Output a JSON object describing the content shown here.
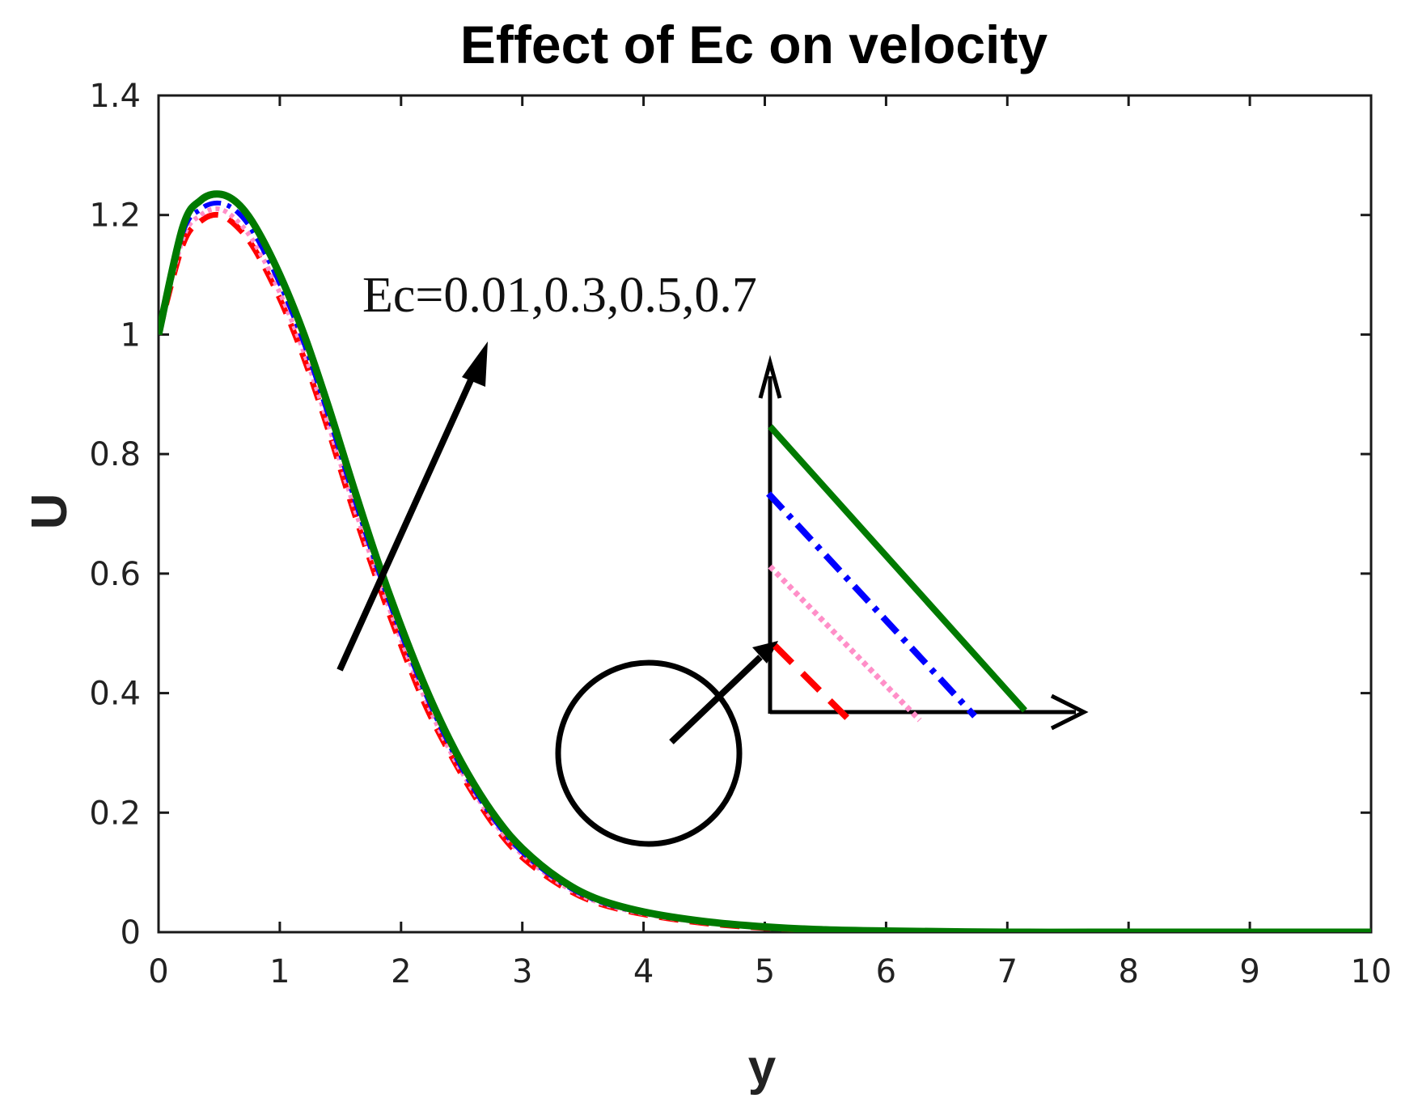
{
  "chart_data": {
    "type": "line",
    "title": "Effect of Ec on velocity",
    "xlabel": "y",
    "ylabel": "U",
    "xlim": [
      0,
      10
    ],
    "ylim": [
      0,
      1.4
    ],
    "xticks": [
      0,
      1,
      2,
      3,
      4,
      5,
      6,
      7,
      8,
      9,
      10
    ],
    "xtick_labels": [
      "0",
      "1",
      "2",
      "3",
      "4",
      "5",
      "6",
      "7",
      "8",
      "9",
      "10"
    ],
    "yticks": [
      0,
      0.2,
      0.4,
      0.6,
      0.8,
      1.0,
      1.2,
      1.4
    ],
    "ytick_labels": [
      "0",
      "0.2",
      "0.4",
      "0.6",
      "0.8",
      "1",
      "1.2",
      "1.4"
    ],
    "grid": false,
    "annotation": "Ec=0.01,0.3,0.5,0.7",
    "series": [
      {
        "name": "Ec=0.01",
        "color": "#ff0000",
        "style": "dashed",
        "x": [
          0,
          0.2,
          0.35,
          0.5,
          0.65,
          0.8,
          1.0,
          1.2,
          1.4,
          1.6,
          1.8,
          2.0,
          2.2,
          2.4,
          2.6,
          2.8,
          3.0,
          3.3,
          3.6,
          4.0,
          4.5,
          5.0,
          5.5,
          6.0,
          7.0,
          8.0,
          9.0,
          10.0
        ],
        "y": [
          1.0,
          1.15,
          1.19,
          1.2,
          1.18,
          1.14,
          1.06,
          0.96,
          0.84,
          0.71,
          0.59,
          0.48,
          0.38,
          0.3,
          0.23,
          0.17,
          0.125,
          0.08,
          0.05,
          0.03,
          0.015,
          0.007,
          0.003,
          0.001,
          0.0,
          0.0,
          0.0,
          0.0
        ]
      },
      {
        "name": "Ec=0.3",
        "color": "#ff8fc8",
        "style": "dotted",
        "x": [
          0,
          0.2,
          0.35,
          0.5,
          0.65,
          0.8,
          1.0,
          1.2,
          1.4,
          1.6,
          1.8,
          2.0,
          2.2,
          2.4,
          2.6,
          2.8,
          3.0,
          3.3,
          3.6,
          4.0,
          4.5,
          5.0,
          5.5,
          6.0,
          7.0,
          8.0,
          9.0,
          10.0
        ],
        "y": [
          1.0,
          1.16,
          1.2,
          1.21,
          1.19,
          1.15,
          1.07,
          0.97,
          0.85,
          0.72,
          0.6,
          0.49,
          0.39,
          0.305,
          0.235,
          0.175,
          0.13,
          0.083,
          0.052,
          0.031,
          0.016,
          0.008,
          0.003,
          0.001,
          0.0,
          0.0,
          0.0,
          0.0
        ]
      },
      {
        "name": "Ec=0.5",
        "color": "#0000ff",
        "style": "dashdot",
        "x": [
          0,
          0.2,
          0.35,
          0.5,
          0.65,
          0.8,
          1.0,
          1.2,
          1.4,
          1.6,
          1.8,
          2.0,
          2.2,
          2.4,
          2.6,
          2.8,
          3.0,
          3.3,
          3.6,
          4.0,
          4.5,
          5.0,
          5.5,
          6.0,
          7.0,
          8.0,
          9.0,
          10.0
        ],
        "y": [
          1.0,
          1.17,
          1.21,
          1.22,
          1.205,
          1.165,
          1.085,
          0.985,
          0.865,
          0.735,
          0.612,
          0.5,
          0.4,
          0.313,
          0.24,
          0.18,
          0.134,
          0.086,
          0.054,
          0.032,
          0.017,
          0.008,
          0.004,
          0.001,
          0.0,
          0.0,
          0.0,
          0.0
        ]
      },
      {
        "name": "Ec=0.7",
        "color": "#007a00",
        "style": "solid",
        "x": [
          0,
          0.2,
          0.35,
          0.5,
          0.65,
          0.8,
          1.0,
          1.2,
          1.4,
          1.6,
          1.8,
          2.0,
          2.2,
          2.4,
          2.6,
          2.8,
          3.0,
          3.3,
          3.6,
          4.0,
          4.5,
          5.0,
          5.5,
          6.0,
          7.0,
          8.0,
          9.0,
          10.0
        ],
        "y": [
          1.0,
          1.18,
          1.225,
          1.235,
          1.22,
          1.18,
          1.1,
          1.0,
          0.88,
          0.75,
          0.625,
          0.512,
          0.41,
          0.322,
          0.248,
          0.187,
          0.14,
          0.09,
          0.057,
          0.034,
          0.018,
          0.009,
          0.004,
          0.002,
          0.0,
          0.0,
          0.0,
          0.0
        ]
      }
    ]
  }
}
